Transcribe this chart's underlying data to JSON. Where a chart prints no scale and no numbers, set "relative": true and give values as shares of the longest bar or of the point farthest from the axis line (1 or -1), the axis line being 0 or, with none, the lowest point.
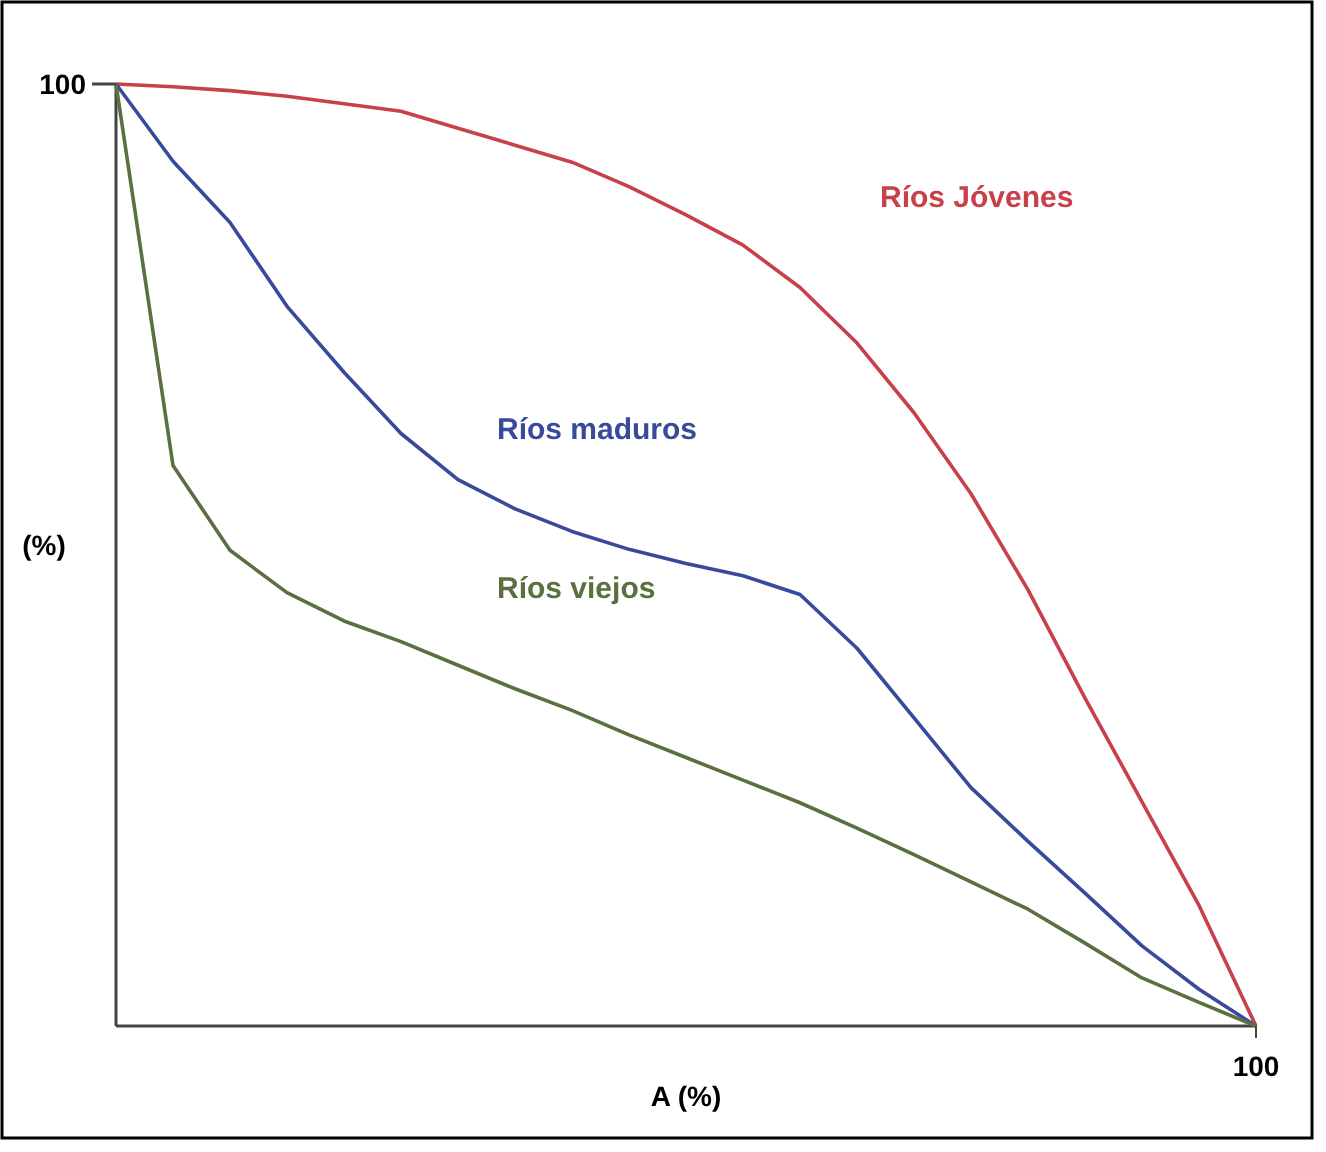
{
  "chart_data": {
    "type": "line",
    "xlabel": "A (%)",
    "ylabel": "(%)",
    "relative": true,
    "annotations": [
      "100",
      "100"
    ],
    "marker": "none",
    "line_style": "solid",
    "categories": [
      null,
      null,
      null,
      null,
      null,
      null,
      null,
      null,
      null,
      null,
      null,
      null,
      null,
      null,
      null,
      null,
      null,
      null,
      null,
      null,
      null
    ],
    "series": [
      {
        "name": "Ríos Jóvenes",
        "color": "#c8404a",
        "values": [
          1,
          0.997,
          0.993,
          0.987,
          0.979,
          0.971,
          0.953,
          0.935,
          0.917,
          0.891,
          0.861,
          0.829,
          0.784,
          0.725,
          0.651,
          0.565,
          0.463,
          0.348,
          0.238,
          0.128,
          0
        ]
      },
      {
        "name": "Ríos maduros",
        "color": "#3a4a9a",
        "values": [
          1,
          0.918,
          0.853,
          0.764,
          0.694,
          0.629,
          0.58,
          0.549,
          0.525,
          0.506,
          0.491,
          0.478,
          0.458,
          0.401,
          0.327,
          0.253,
          0.196,
          0.141,
          0.085,
          0.039,
          0
        ]
      },
      {
        "name": "Ríos viejos",
        "color": "#5a7040",
        "values": [
          1,
          0.595,
          0.505,
          0.46,
          0.43,
          0.408,
          0.383,
          0.358,
          0.335,
          0.309,
          0.285,
          0.261,
          0.237,
          0.21,
          0.182,
          0.153,
          0.124,
          0.088,
          0.051,
          0.025,
          0
        ]
      }
    ]
  }
}
